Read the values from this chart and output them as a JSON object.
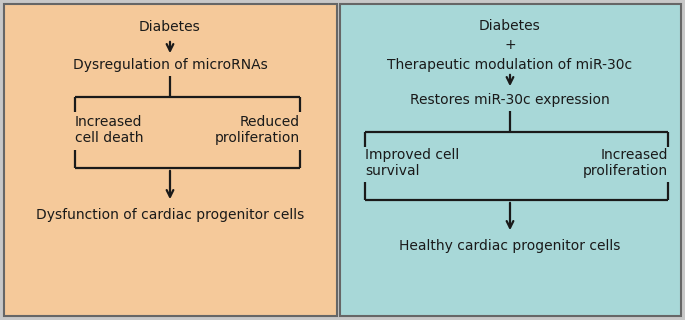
{
  "left_bg": "#F5C99A",
  "right_bg": "#A8D8D8",
  "border_color": "#666666",
  "text_color": "#1a1a1a",
  "arrow_color": "#1a1a1a",
  "fig_bg": "#C8C8C8",
  "left_panel": {
    "top_text": "Diabetes",
    "mid_text": "Dysregulation of microRNAs",
    "left_branch": "Increased\ncell death",
    "right_branch": "Reduced\nproliferation",
    "bottom_text": "Dysfunction of cardiac progenitor cells"
  },
  "right_panel": {
    "top_text": "Diabetes\n+\nTherapeutic modulation of miR-30c",
    "mid_text": "Restores miR-30c expression",
    "left_branch": "Improved cell\nsurvival",
    "right_branch": "Increased\nproliferation",
    "bottom_text": "Healthy cardiac progenitor cells"
  },
  "font_size": 10,
  "font_family": "DejaVu Sans",
  "lw": 1.6
}
